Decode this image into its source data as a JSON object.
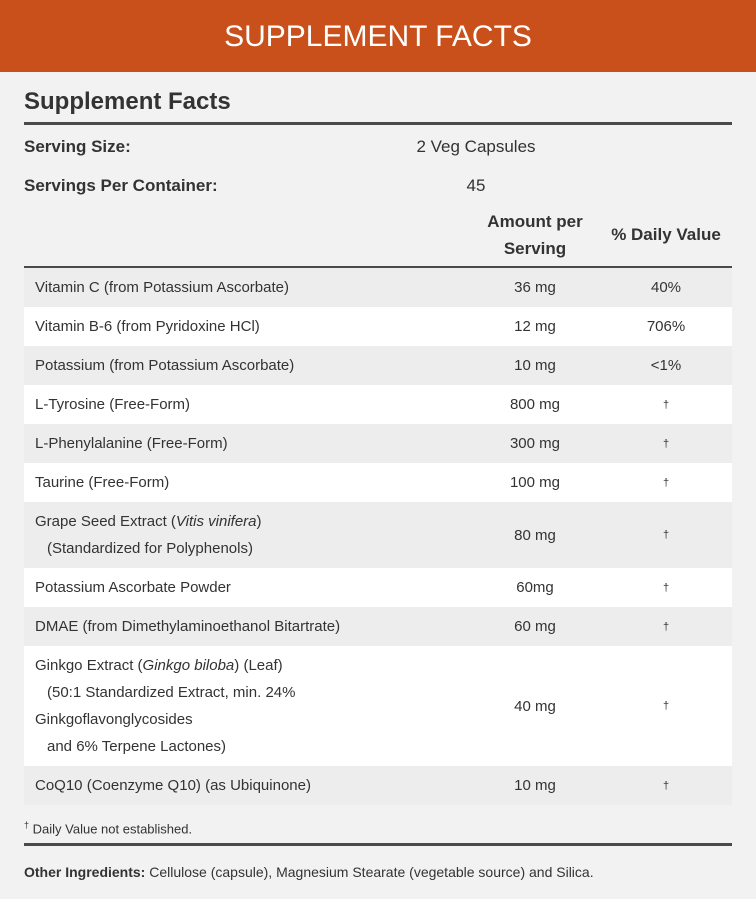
{
  "header": {
    "title": "SUPPLEMENT FACTS"
  },
  "panel": {
    "title": "Supplement Facts",
    "serving": [
      {
        "label": "Serving Size:",
        "value": "2 Veg Capsules"
      },
      {
        "label": "Servings Per Container:",
        "value": "45"
      }
    ],
    "columns": {
      "amount": "Amount per Serving",
      "daily_value": "% Daily Value"
    },
    "rows": [
      {
        "name": [
          [
            {
              "text": "Vitamin C (from Potassium Ascorbate)"
            }
          ]
        ],
        "amount": "36 mg",
        "daily_value": "40%"
      },
      {
        "name": [
          [
            {
              "text": "Vitamin B-6 (from Pyridoxine HCl)"
            }
          ]
        ],
        "amount": "12 mg",
        "daily_value": "706%"
      },
      {
        "name": [
          [
            {
              "text": "Potassium (from Potassium Ascorbate)"
            }
          ]
        ],
        "amount": "10 mg",
        "daily_value": "<1%"
      },
      {
        "name": [
          [
            {
              "text": "L-Tyrosine (Free-Form)"
            }
          ]
        ],
        "amount": "800 mg",
        "daily_value": "†"
      },
      {
        "name": [
          [
            {
              "text": "L-Phenylalanine (Free-Form)"
            }
          ]
        ],
        "amount": "300 mg",
        "daily_value": "†"
      },
      {
        "name": [
          [
            {
              "text": "Taurine (Free-Form)"
            }
          ]
        ],
        "amount": "100 mg",
        "daily_value": "†"
      },
      {
        "name": [
          [
            {
              "text": "Grape Seed Extract ("
            },
            {
              "text": "Vitis vinifera",
              "italic": true
            },
            {
              "text": ")"
            }
          ],
          [
            {
              "text": "(Standardized for Polyphenols)",
              "indent": true
            }
          ]
        ],
        "amount": "80 mg",
        "daily_value": "†"
      },
      {
        "name": [
          [
            {
              "text": "Potassium Ascorbate Powder"
            }
          ]
        ],
        "amount": "60mg",
        "daily_value": "†"
      },
      {
        "name": [
          [
            {
              "text": "DMAE (from Dimethylaminoethanol Bitartrate)"
            }
          ]
        ],
        "amount": "60 mg",
        "daily_value": "†"
      },
      {
        "name": [
          [
            {
              "text": "Ginkgo Extract ("
            },
            {
              "text": "Ginkgo biloba",
              "italic": true
            },
            {
              "text": ") (Leaf)"
            }
          ],
          [
            {
              "text": "(50:1 Standardized Extract, min. 24%",
              "indent": true
            }
          ],
          [
            {
              "text": "Ginkgoflavonglycosides"
            }
          ],
          [
            {
              "text": "and 6% Terpene Lactones)",
              "indent": true
            }
          ]
        ],
        "amount": "40 mg",
        "daily_value": "†"
      },
      {
        "name": [
          [
            {
              "text": "CoQ10 (Coenzyme Q10) (as Ubiquinone)"
            }
          ]
        ],
        "amount": "10 mg",
        "daily_value": "†"
      }
    ],
    "footnote": {
      "symbol": "†",
      "text": "Daily Value not established."
    },
    "other_ingredients": {
      "label": "Other Ingredients:",
      "text": "Cellulose (capsule), Magnesium Stearate (vegetable source) and Silica."
    }
  }
}
